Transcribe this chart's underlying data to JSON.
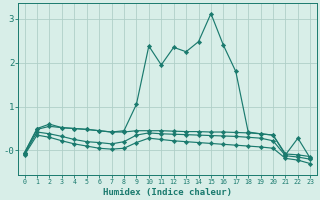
{
  "title": "",
  "xlabel": "Humidex (Indice chaleur)",
  "background_color": "#d8eee8",
  "grid_color": "#b0cfc8",
  "line_color": "#1a7a6e",
  "xlim": [
    -0.5,
    23.5
  ],
  "ylim": [
    -0.55,
    3.35
  ],
  "xticks": [
    0,
    1,
    2,
    3,
    4,
    5,
    6,
    7,
    8,
    9,
    10,
    11,
    12,
    13,
    14,
    15,
    16,
    17,
    18,
    19,
    20,
    21,
    22,
    23
  ],
  "yticks": [
    0,
    1,
    2,
    3
  ],
  "lines": [
    {
      "x": [
        0,
        1,
        2,
        3,
        4,
        5,
        6,
        7,
        8,
        9,
        10,
        11,
        12,
        13,
        14,
        15,
        16,
        17,
        18,
        19,
        20,
        21,
        22,
        23
      ],
      "y": [
        -0.05,
        0.5,
        0.6,
        0.52,
        0.5,
        0.48,
        0.45,
        0.42,
        0.45,
        1.05,
        2.38,
        1.95,
        2.35,
        2.25,
        2.48,
        3.12,
        2.4,
        1.8,
        0.42,
        0.38,
        0.35,
        -0.1,
        0.28,
        -0.18
      ]
    },
    {
      "x": [
        0,
        1,
        2,
        3,
        4,
        5,
        6,
        7,
        8,
        9,
        10,
        11,
        12,
        13,
        14,
        15,
        16,
        17,
        18,
        19,
        20,
        21,
        22,
        23
      ],
      "y": [
        -0.05,
        0.48,
        0.55,
        0.52,
        0.5,
        0.48,
        0.45,
        0.42,
        0.42,
        0.45,
        0.45,
        0.45,
        0.44,
        0.43,
        0.43,
        0.42,
        0.42,
        0.41,
        0.4,
        0.38,
        0.35,
        -0.08,
        -0.1,
        -0.14
      ]
    },
    {
      "x": [
        0,
        1,
        2,
        3,
        4,
        5,
        6,
        7,
        8,
        9,
        10,
        11,
        12,
        13,
        14,
        15,
        16,
        17,
        18,
        19,
        20,
        21,
        22,
        23
      ],
      "y": [
        -0.08,
        0.42,
        0.38,
        0.32,
        0.25,
        0.2,
        0.18,
        0.15,
        0.2,
        0.35,
        0.4,
        0.38,
        0.37,
        0.36,
        0.35,
        0.34,
        0.33,
        0.32,
        0.3,
        0.28,
        0.22,
        -0.12,
        -0.15,
        -0.2
      ]
    },
    {
      "x": [
        0,
        1,
        2,
        3,
        4,
        5,
        6,
        7,
        8,
        9,
        10,
        11,
        12,
        13,
        14,
        15,
        16,
        17,
        18,
        19,
        20,
        21,
        22,
        23
      ],
      "y": [
        -0.1,
        0.35,
        0.3,
        0.22,
        0.15,
        0.1,
        0.05,
        0.03,
        0.05,
        0.18,
        0.28,
        0.25,
        0.22,
        0.2,
        0.18,
        0.16,
        0.14,
        0.12,
        0.1,
        0.08,
        0.05,
        -0.18,
        -0.22,
        -0.3
      ]
    }
  ]
}
